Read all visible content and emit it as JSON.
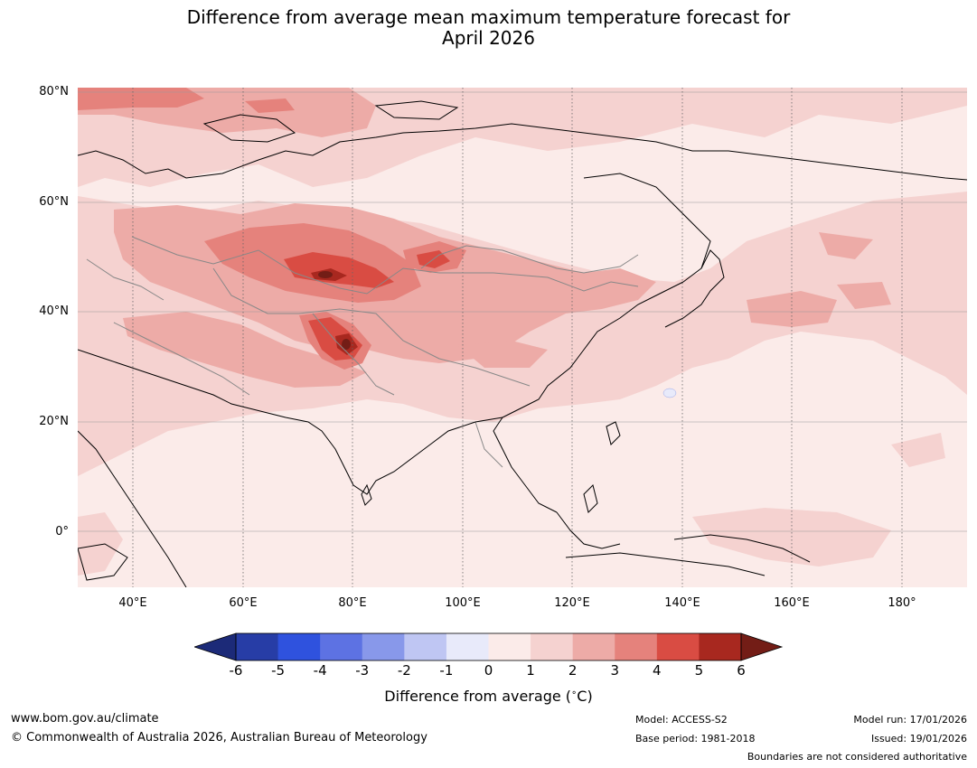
{
  "title": {
    "line1": "Difference from average mean maximum temperature forecast for",
    "line2": "April 2026"
  },
  "axes": {
    "lat_labels": [
      "80°N",
      "60°N",
      "40°N",
      "20°N",
      "0°"
    ],
    "lon_labels": [
      "40°E",
      "60°E",
      "80°E",
      "100°E",
      "120°E",
      "140°E",
      "160°E",
      "180°"
    ]
  },
  "colorbar": {
    "ticks": [
      "-6",
      "-5",
      "-4",
      "-3",
      "-2",
      "-1",
      "0",
      "1",
      "2",
      "3",
      "4",
      "5",
      "6"
    ],
    "label": "Difference from average (°C)",
    "label_text": "Difference from average (",
    "label_unit": "C)",
    "colors": [
      "#273da6",
      "#2f52de",
      "#5d72e3",
      "#8898ea",
      "#bfc6f3",
      "#e8eafa",
      "#fbebe9",
      "#f5d2d0",
      "#edaba7",
      "#e5827c",
      "#d94c43",
      "#a8281f"
    ],
    "low_extend_color": "#1c2a78",
    "high_extend_color": "#731d16"
  },
  "footer": {
    "website": "www.bom.gov.au/climate",
    "copyright": "© Commonwealth of Australia 2026, Australian Bureau of Meteorology",
    "model": "Model: ACCESS-S2",
    "base_period": "Base period: 1981-2018",
    "model_run": "Model run: 17/01/2026",
    "issued": "Issued: 19/01/2026",
    "disclaimer": "Boundaries are not considered authoritative"
  }
}
